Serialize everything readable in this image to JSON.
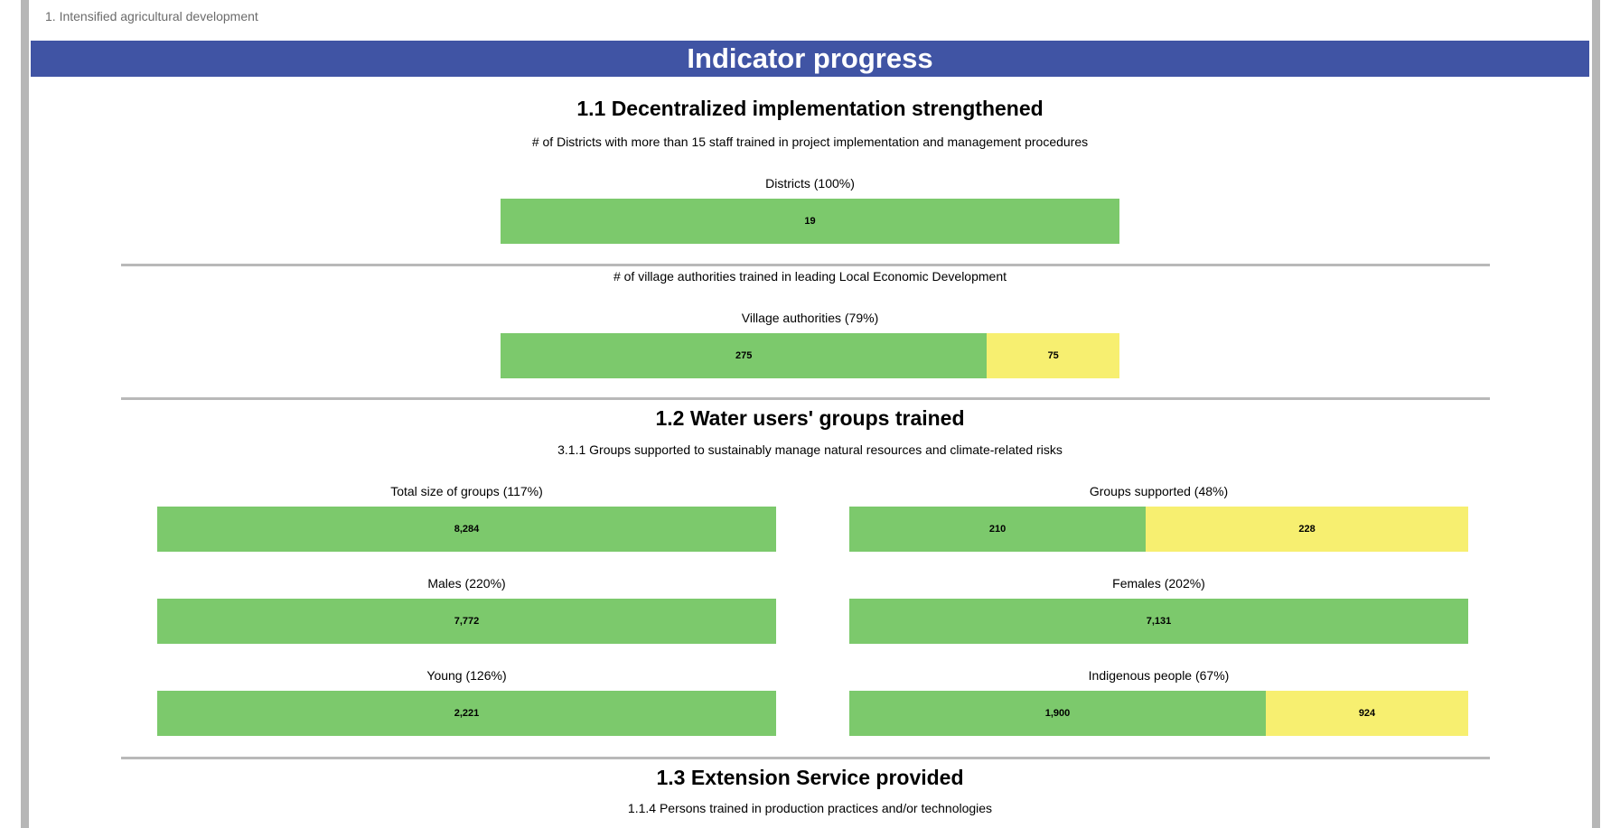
{
  "breadcrumb": "1. Intensified agricultural development",
  "banner_title": "Indicator progress",
  "colors": {
    "banner": "#4054a4",
    "achieved": "#7cc96c",
    "remaining": "#f7ef70",
    "divider": "#b9b9b9"
  },
  "sections": [
    {
      "title": "1.1 Decentralized implementation strengthened",
      "indicators": [
        {
          "subtitle": "# of Districts with more than 15 staff trained in project implementation and management procedures",
          "bars": [
            {
              "label": "Districts (100%)",
              "achieved": "19",
              "achieved_fraction": 1.0,
              "remaining": ""
            }
          ]
        },
        {
          "subtitle": "# of village authorities trained in leading Local Economic Development",
          "bars": [
            {
              "label": "Village authorities (79%)",
              "achieved": "275",
              "achieved_fraction": 0.786,
              "remaining": "75"
            }
          ]
        }
      ]
    },
    {
      "title": "1.2 Water users' groups trained",
      "indicators": [
        {
          "subtitle": "3.1.1 Groups supported to sustainably manage natural resources and climate-related risks",
          "bars": [
            {
              "label": "Total size of groups (117%)",
              "achieved": "8,284",
              "achieved_fraction": 1.0,
              "remaining": ""
            },
            {
              "label": "Groups supported (48%)",
              "achieved": "210",
              "achieved_fraction": 0.479,
              "remaining": "228"
            },
            {
              "label": "Males (220%)",
              "achieved": "7,772",
              "achieved_fraction": 1.0,
              "remaining": ""
            },
            {
              "label": "Females (202%)",
              "achieved": "7,131",
              "achieved_fraction": 1.0,
              "remaining": ""
            },
            {
              "label": "Young (126%)",
              "achieved": "2,221",
              "achieved_fraction": 1.0,
              "remaining": ""
            },
            {
              "label": "Indigenous people (67%)",
              "achieved": "1,900",
              "achieved_fraction": 0.673,
              "remaining": "924"
            }
          ]
        }
      ]
    },
    {
      "title": "1.3 Extension Service provided",
      "indicators": [
        {
          "subtitle": "1.1.4 Persons trained in production practices and/or technologies",
          "bars": []
        }
      ]
    }
  ]
}
